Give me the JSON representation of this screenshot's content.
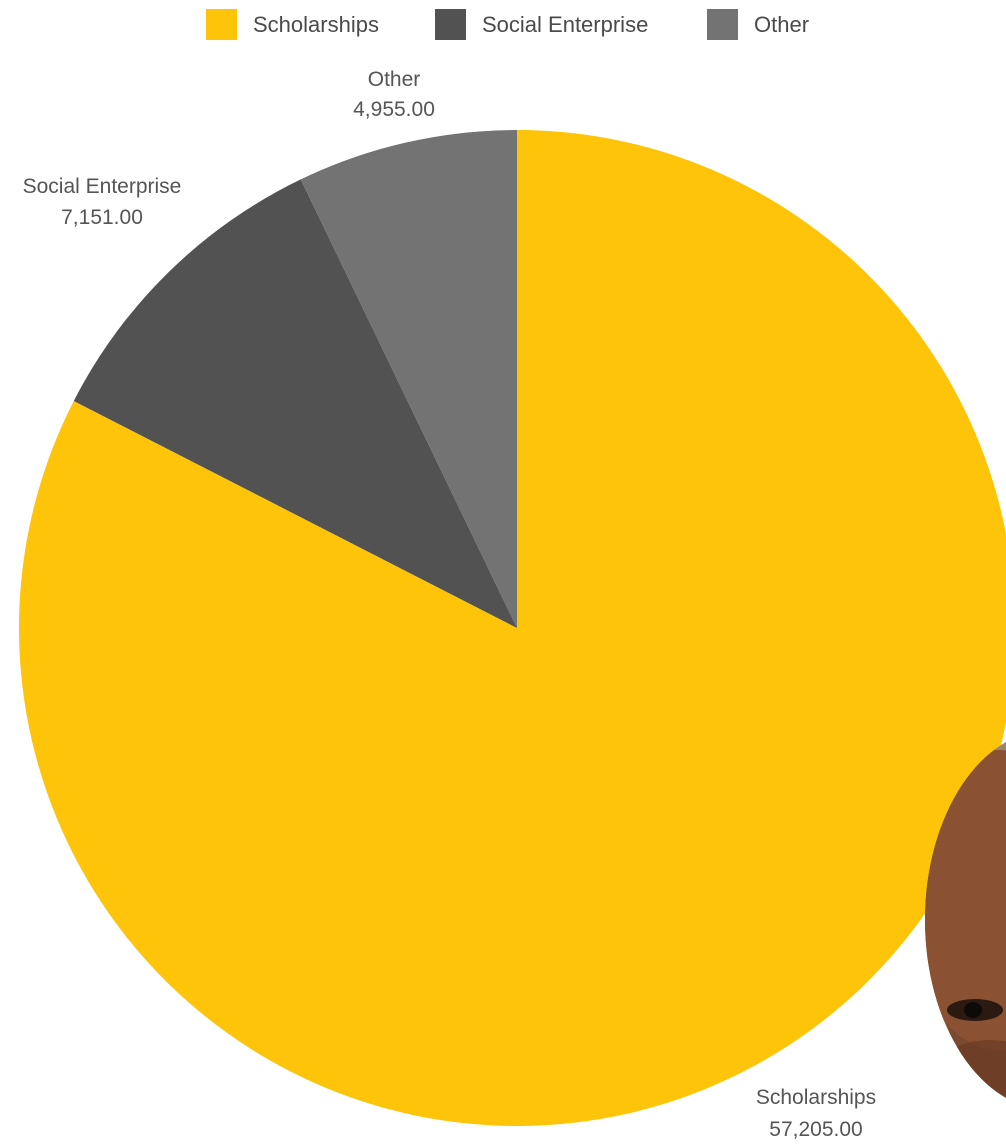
{
  "chart_data": {
    "type": "pie",
    "title": "",
    "legend_position": "top",
    "slices": [
      {
        "label": "Scholarships",
        "value": 57205.0,
        "display": "57,205.00",
        "color": "#FDC40A"
      },
      {
        "label": "Social Enterprise",
        "value": 7151.0,
        "display": "7,151.00",
        "color": "#525252"
      },
      {
        "label": "Other",
        "value": 4955.0,
        "display": "4,955.00",
        "color": "#737373"
      }
    ]
  }
}
